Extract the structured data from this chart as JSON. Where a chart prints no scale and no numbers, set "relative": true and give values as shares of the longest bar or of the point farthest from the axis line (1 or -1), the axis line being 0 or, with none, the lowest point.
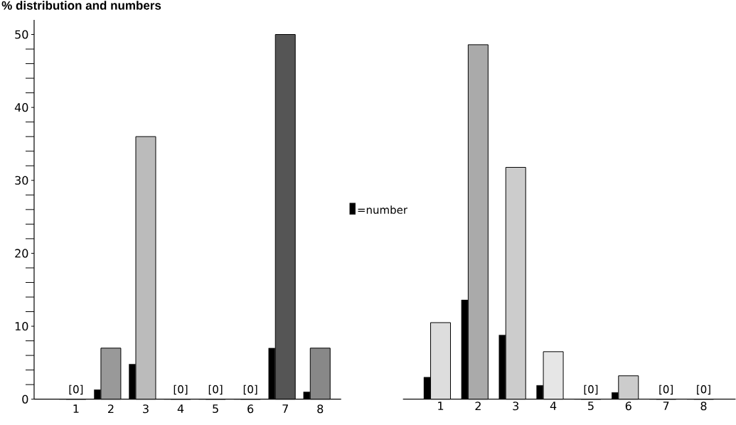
{
  "chart_data": [
    {
      "type": "bar",
      "title": "% distribution and numbers",
      "categories": [
        "1",
        "2",
        "3",
        "4",
        "5",
        "6",
        "7",
        "8"
      ],
      "series": [
        {
          "name": "=number",
          "color": "#000000",
          "values": [
            0,
            1.3,
            4.8,
            0,
            0,
            0,
            7,
            1
          ]
        },
        {
          "colors": [
            "#ffffff",
            "#999999",
            "#bbbbbb",
            "#ffffff",
            "#ffffff",
            "#ffffff",
            "#555555",
            "#888888"
          ],
          "values": [
            0,
            7,
            36,
            0,
            0,
            0,
            50,
            7
          ]
        }
      ],
      "ylim": [
        0,
        52
      ],
      "yticks": [
        0,
        10,
        20,
        30,
        40,
        50
      ],
      "legend": "right",
      "annotations": [
        {
          "text": "[0]",
          "x": "1",
          "y": 0
        },
        {
          "text": "[0]",
          "x": "4",
          "y": 0
        },
        {
          "text": "[0]",
          "x": "5",
          "y": 0
        },
        {
          "text": "[0]",
          "x": "6",
          "y": 0
        }
      ]
    },
    {
      "type": "bar",
      "categories": [
        "1",
        "2",
        "3",
        "4",
        "5",
        "6",
        "7",
        "8"
      ],
      "series": [
        {
          "color": "#000000",
          "values": [
            0.062,
            0.28,
            0.181,
            0.039,
            0,
            0.019,
            0,
            0
          ]
        },
        {
          "colors": [
            "#dddddd",
            "#aaaaaa",
            "#cccccc",
            "#e6e6e6",
            "#ffffff",
            "#cccccc",
            "#ffffff",
            "#ffffff"
          ],
          "values": [
            0.216,
            1,
            0.654,
            0.134,
            0,
            0.066,
            0,
            0
          ]
        }
      ],
      "relative": true,
      "tick_labels": "x",
      "annotations": [
        {
          "text": "[0]",
          "x": "5",
          "y": 0
        },
        {
          "text": "[0]",
          "x": "7",
          "y": 0
        },
        {
          "text": "[0]",
          "x": "8",
          "y": 0
        }
      ]
    }
  ]
}
